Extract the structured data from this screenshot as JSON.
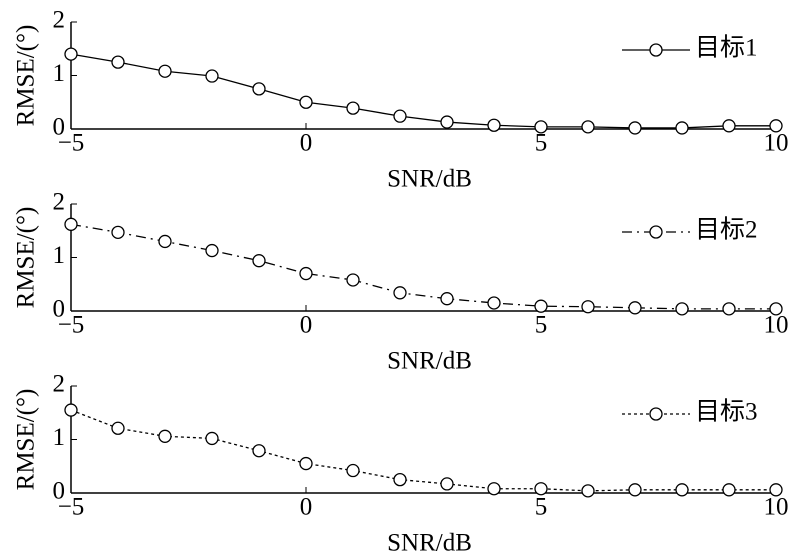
{
  "chart_data": [
    {
      "type": "line",
      "x": [
        -5,
        -4,
        -3,
        -2,
        -1,
        0,
        1,
        2,
        3,
        4,
        5,
        6,
        7,
        8,
        9,
        10
      ],
      "series": [
        {
          "name": "目标1",
          "color": "#000000",
          "line_style": "solid",
          "values": [
            1.4,
            1.25,
            1.08,
            0.99,
            0.75,
            0.5,
            0.39,
            0.24,
            0.13,
            0.07,
            0.04,
            0.04,
            0.02,
            0.02,
            0.06,
            0.06
          ]
        }
      ],
      "xlabel": "SNR/dB",
      "ylabel": "RMSE/(°)",
      "xlim": [
        -5,
        10
      ],
      "ylim": [
        0,
        2
      ],
      "xticks": [
        {
          "value": -5,
          "label": "−5"
        },
        0,
        5,
        10
      ],
      "yticks": [
        0,
        1,
        2
      ],
      "legend": "upper right"
    },
    {
      "type": "line",
      "x": [
        -5,
        -4,
        -3,
        -2,
        -1,
        0,
        1,
        2,
        3,
        4,
        5,
        6,
        7,
        8,
        9,
        10
      ],
      "series": [
        {
          "name": "目标2",
          "color": "#000000",
          "line_style": "dashdot",
          "values": [
            1.62,
            1.47,
            1.3,
            1.13,
            0.94,
            0.7,
            0.58,
            0.34,
            0.23,
            0.15,
            0.09,
            0.08,
            0.06,
            0.04,
            0.04,
            0.04
          ]
        }
      ],
      "xlabel": "SNR/dB",
      "ylabel": "RMSE/(°)",
      "xlim": [
        -5,
        10
      ],
      "ylim": [
        0,
        2
      ],
      "xticks": [
        {
          "value": -5,
          "label": "−5"
        },
        0,
        5,
        10
      ],
      "yticks": [
        0,
        1,
        2
      ],
      "legend": "upper right"
    },
    {
      "type": "line",
      "x": [
        -5,
        -4,
        -3,
        -2,
        -1,
        0,
        1,
        2,
        3,
        4,
        5,
        6,
        7,
        8,
        9,
        10
      ],
      "series": [
        {
          "name": "目标3",
          "color": "#000000",
          "line_style": "dotted",
          "values": [
            1.55,
            1.21,
            1.06,
            1.02,
            0.79,
            0.55,
            0.42,
            0.25,
            0.17,
            0.08,
            0.08,
            0.04,
            0.06,
            0.06,
            0.06,
            0.06
          ]
        }
      ],
      "xlabel": "SNR/dB",
      "ylabel": "RMSE/(°)",
      "xlim": [
        -5,
        10
      ],
      "ylim": [
        0,
        2
      ],
      "xticks": [
        {
          "value": -5,
          "label": "−5"
        },
        0,
        5,
        10
      ],
      "yticks": [
        0,
        1,
        2
      ],
      "legend": "upper right"
    }
  ]
}
